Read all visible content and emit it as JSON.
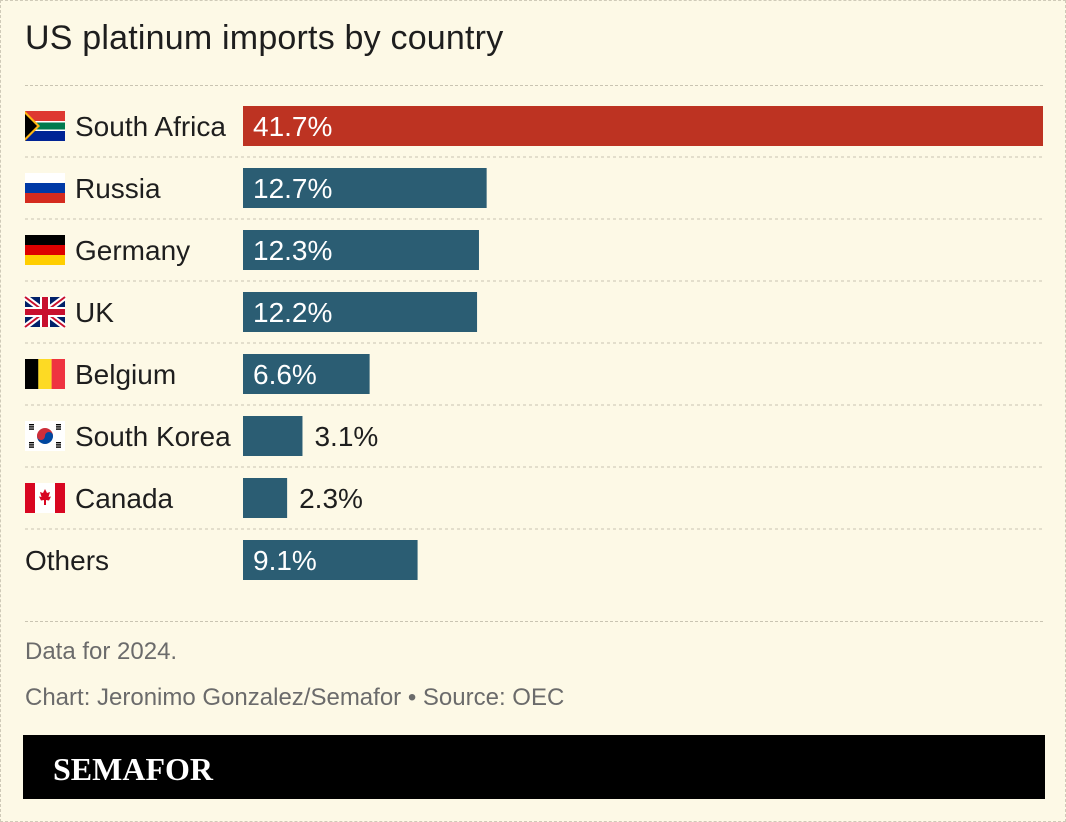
{
  "title": "US platinum imports by country",
  "note": "Data for 2024.",
  "credit": "Chart: Jeronimo Gonzalez/Semafor • Source: OEC",
  "logo": "SEMAFOR",
  "colors": {
    "background": "#fdf9e6",
    "highlight_bar": "#bd3322",
    "bar": "#2b5d73",
    "footer": "#000000"
  },
  "chart_data": {
    "type": "bar",
    "orientation": "horizontal",
    "categories": [
      "South Africa",
      "Russia",
      "Germany",
      "UK",
      "Belgium",
      "South Korea",
      "Canada",
      "Others"
    ],
    "values": [
      41.7,
      12.7,
      12.3,
      12.2,
      6.6,
      3.1,
      2.3,
      9.1
    ],
    "value_labels": [
      "41.7%",
      "12.7%",
      "12.3%",
      "12.2%",
      "6.6%",
      "3.1%",
      "2.3%",
      "9.1%"
    ],
    "flags": [
      "south-africa-flag",
      "russia-flag",
      "germany-flag",
      "uk-flag",
      "belgium-flag",
      "south-korea-flag",
      "canada-flag",
      null
    ],
    "highlight": "South Africa",
    "xlim": [
      0,
      41.7
    ],
    "grid": false
  }
}
